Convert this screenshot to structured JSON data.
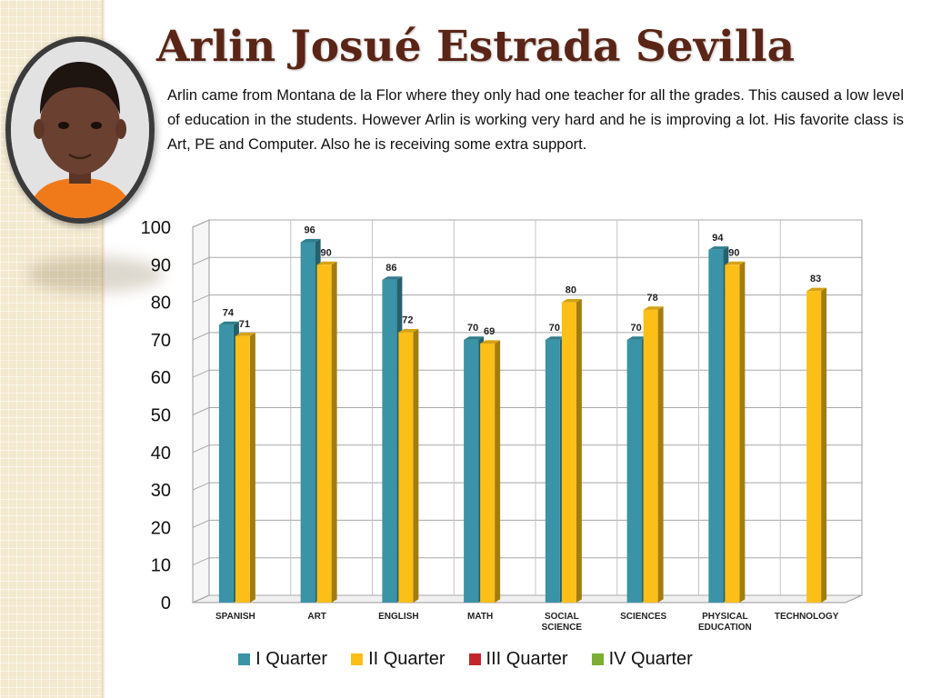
{
  "header": {
    "title": "Arlin Josué Estrada Sevilla",
    "description": "Arlin came from Montana de la Flor where they only had one teacher for all the grades. This caused a low level of education in the students. However Arlin is working  very hard and he is improving a lot.  His favorite class is Art, PE and Computer. Also he is receiving some extra support."
  },
  "colors": {
    "title": "#5a2516",
    "background_strip": "#f3e9cf",
    "q1": "#3a93a6",
    "q2": "#fbbf17",
    "q3": "#c0272d",
    "q4": "#7cae35"
  },
  "chart_data": {
    "type": "bar",
    "categories": [
      "SPANISH",
      "ART",
      "ENGLISH",
      "MATH",
      "SOCIAL SCIENCE",
      "SCIENCES",
      "PHYSICAL EDUCATION",
      "TECHNOLOGY"
    ],
    "series": [
      {
        "name": "I Quarter",
        "color": "#3a93a6",
        "values": [
          74,
          96,
          86,
          70,
          70,
          70,
          94,
          null
        ]
      },
      {
        "name": "II Quarter",
        "color": "#fbbf17",
        "values": [
          71,
          90,
          72,
          69,
          80,
          78,
          90,
          83
        ]
      },
      {
        "name": "III Quarter",
        "color": "#c0272d",
        "values": [
          null,
          null,
          null,
          null,
          null,
          null,
          null,
          null
        ]
      },
      {
        "name": "IV Quarter",
        "color": "#7cae35",
        "values": [
          null,
          null,
          null,
          null,
          null,
          null,
          null,
          null
        ]
      }
    ],
    "ylim": [
      0,
      100
    ],
    "yticks": [
      0,
      10,
      20,
      30,
      40,
      50,
      60,
      70,
      80,
      90,
      100
    ],
    "grid": true,
    "legend_position": "bottom",
    "data_labels": true
  }
}
